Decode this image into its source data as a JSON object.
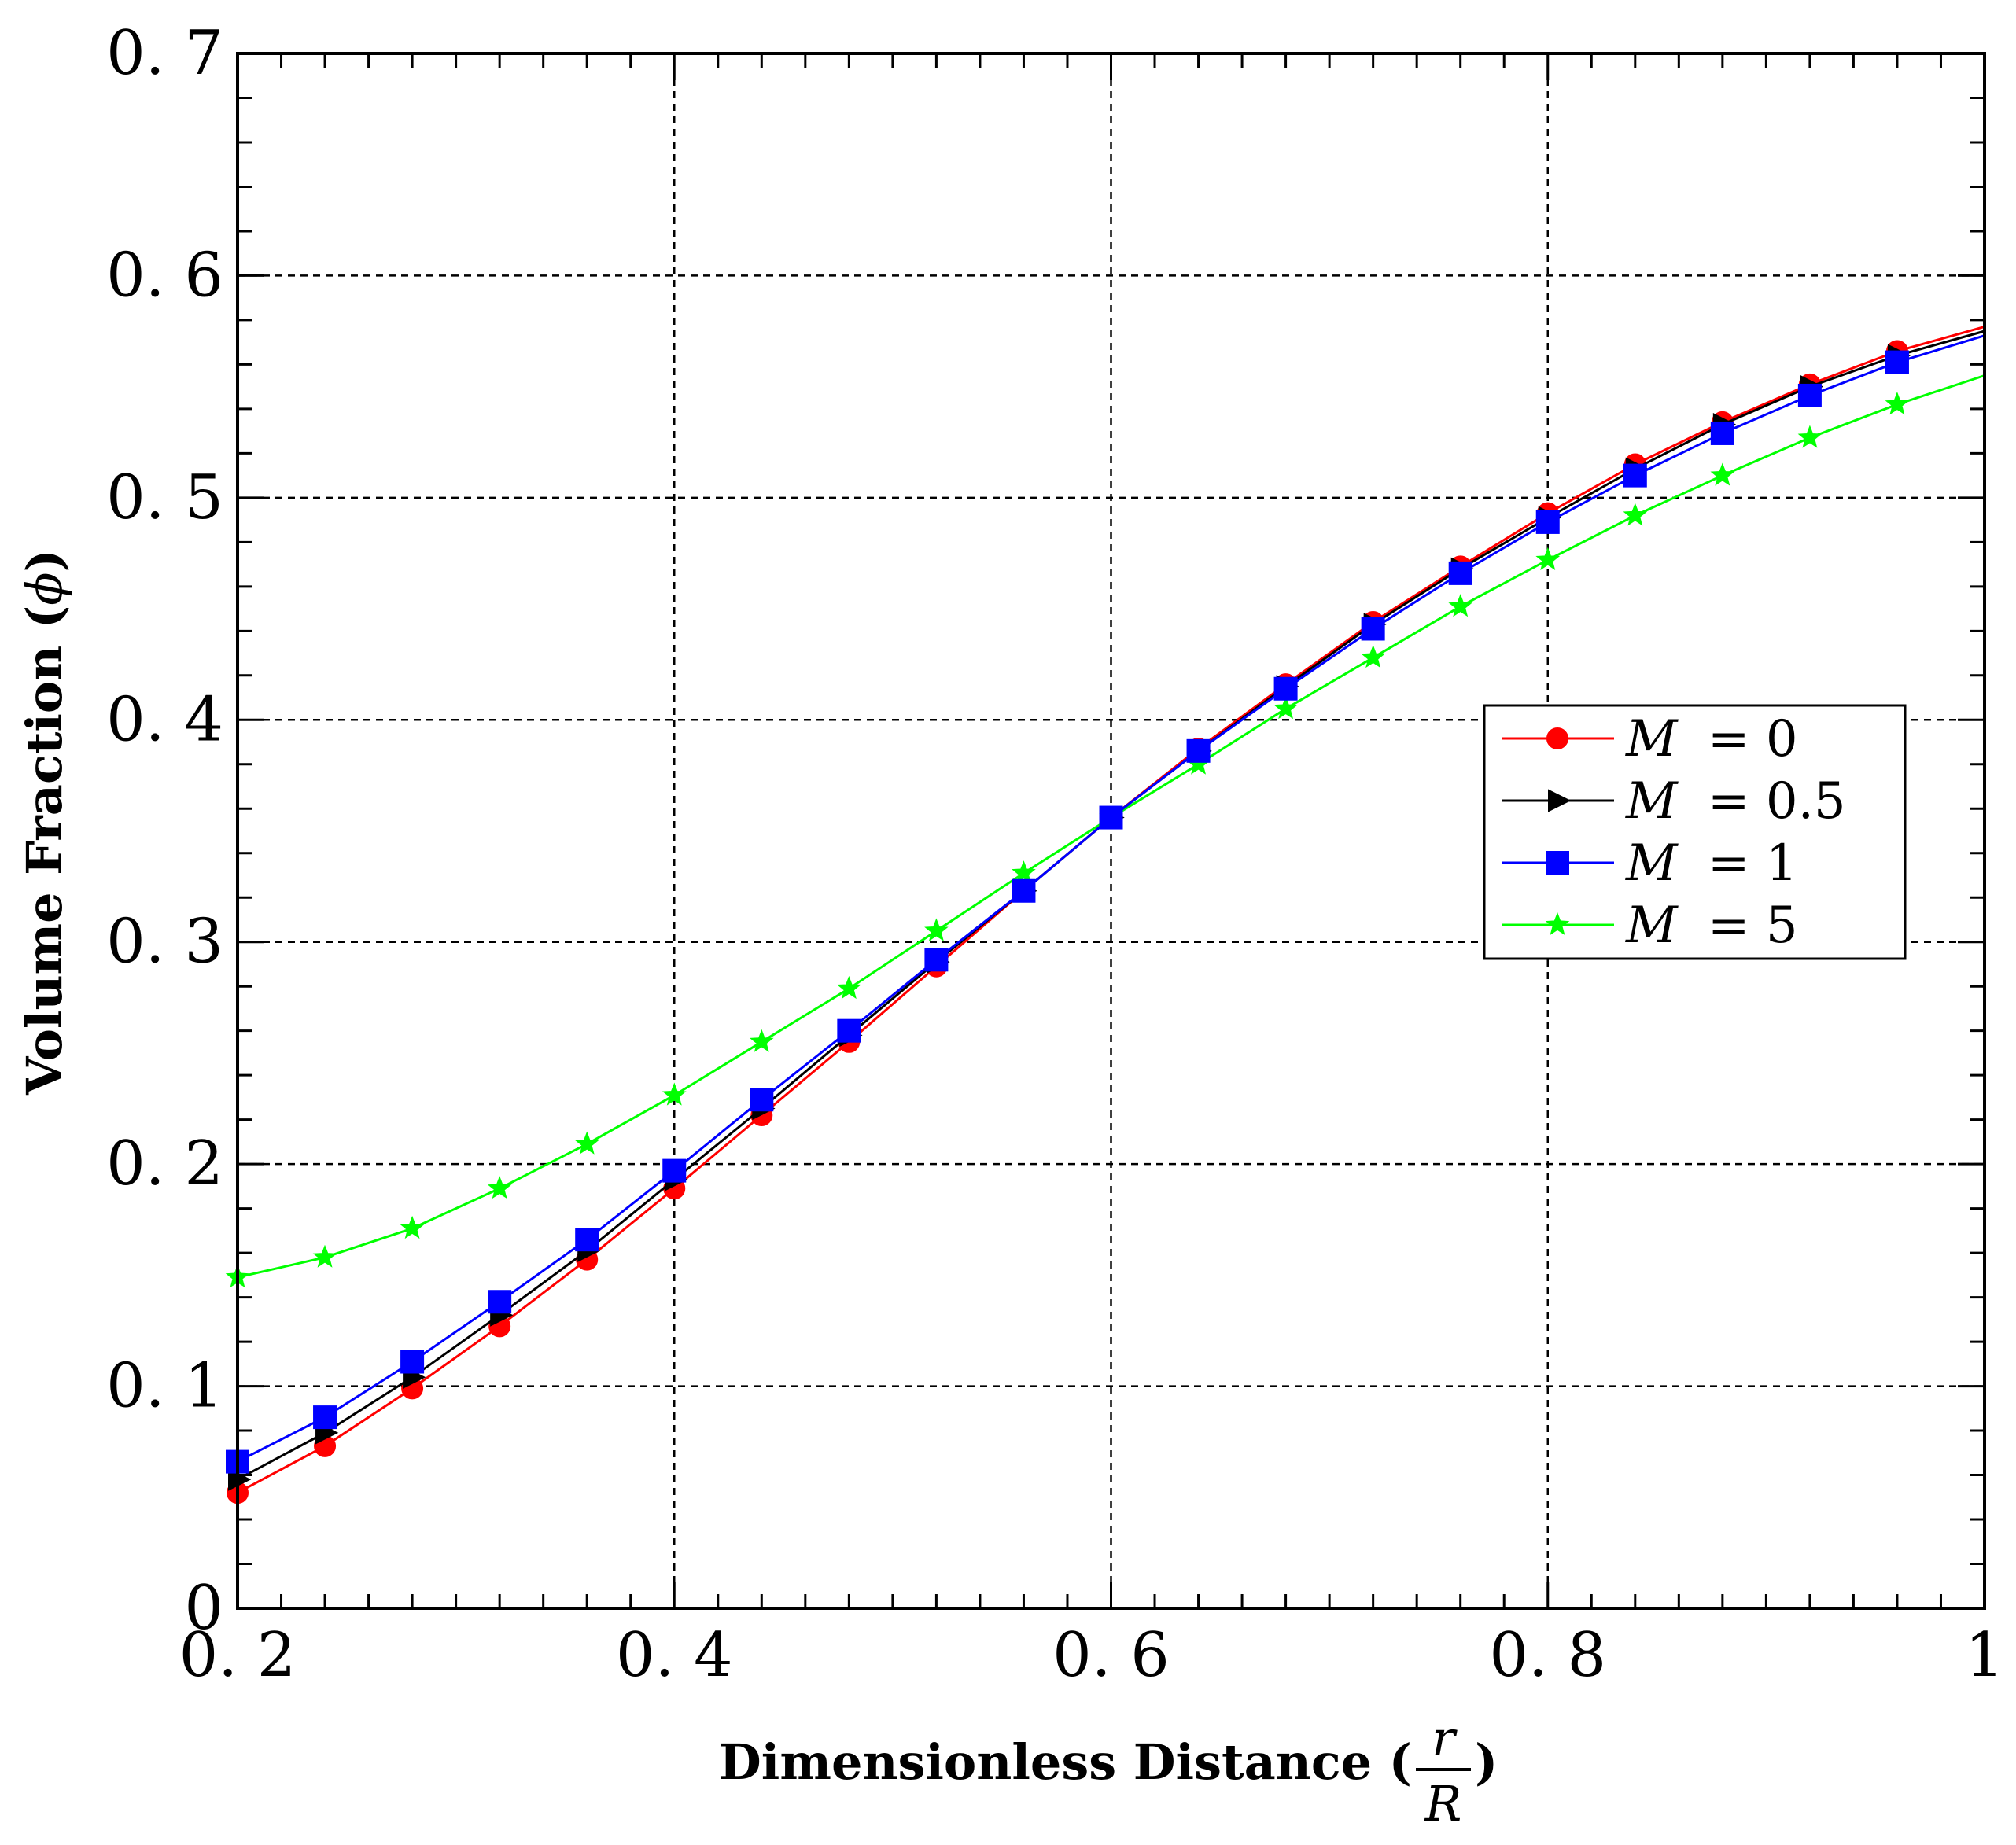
{
  "chart_data": {
    "type": "line",
    "xlabel": "Dimensionless Distance (",
    "xlabel_frac_num": "r",
    "xlabel_frac_den": "R",
    "xlabel_close": ")",
    "ylabel": "Volume Fraction (",
    "ylabel_symbol": "ϕ",
    "ylabel_close": ")",
    "xlim": [
      0.2,
      1.0
    ],
    "ylim": [
      0,
      0.7
    ],
    "xticks": [
      0.2,
      0.4,
      0.6,
      0.8,
      1.0
    ],
    "xtick_labels": [
      "0. 2",
      "0. 4",
      "0. 6",
      "0. 8",
      "1"
    ],
    "yticks": [
      0,
      0.1,
      0.2,
      0.3,
      0.4,
      0.5,
      0.6,
      0.7
    ],
    "ytick_labels": [
      "0",
      "0. 1",
      "0. 2",
      "0. 3",
      "0. 4",
      "0. 5",
      "0. 6",
      "0. 7"
    ],
    "grid": true,
    "legend_position": "center-right",
    "x": [
      0.2,
      0.24,
      0.28,
      0.32,
      0.36,
      0.4,
      0.44,
      0.48,
      0.52,
      0.56,
      0.6,
      0.64,
      0.68,
      0.72,
      0.76,
      0.8,
      0.84,
      0.88,
      0.92,
      0.96,
      1.0
    ],
    "series": [
      {
        "name": "M = 0",
        "label_var": "M",
        "label_eq": " = 0",
        "color": "#ff0000",
        "marker": "circle",
        "values": [
          0.052,
          0.073,
          0.099,
          0.127,
          0.157,
          0.189,
          0.222,
          0.255,
          0.289,
          0.323,
          0.356,
          0.387,
          0.416,
          0.444,
          0.469,
          0.493,
          0.515,
          0.534,
          0.551,
          0.566,
          0.577
        ]
      },
      {
        "name": "M = 0.5",
        "label_var": "M",
        "label_eq": " = 0.5",
        "color": "#000000",
        "marker": "triangle-right",
        "values": [
          0.058,
          0.079,
          0.104,
          0.132,
          0.161,
          0.193,
          0.225,
          0.258,
          0.291,
          0.323,
          0.356,
          0.386,
          0.415,
          0.443,
          0.468,
          0.491,
          0.513,
          0.533,
          0.55,
          0.564,
          0.575
        ]
      },
      {
        "name": "M = 1",
        "label_var": "M",
        "label_eq": " = 1",
        "color": "#0000ff",
        "marker": "square",
        "values": [
          0.066,
          0.086,
          0.111,
          0.138,
          0.166,
          0.197,
          0.229,
          0.26,
          0.292,
          0.323,
          0.356,
          0.386,
          0.414,
          0.441,
          0.466,
          0.489,
          0.51,
          0.529,
          0.546,
          0.561,
          0.573
        ]
      },
      {
        "name": "M = 5",
        "label_var": "M",
        "label_eq": " = 5",
        "color": "#00ff00",
        "marker": "star",
        "values": [
          0.149,
          0.158,
          0.171,
          0.189,
          0.209,
          0.231,
          0.255,
          0.279,
          0.305,
          0.331,
          0.356,
          0.38,
          0.405,
          0.428,
          0.451,
          0.472,
          0.492,
          0.51,
          0.527,
          0.542,
          0.555
        ]
      }
    ]
  }
}
